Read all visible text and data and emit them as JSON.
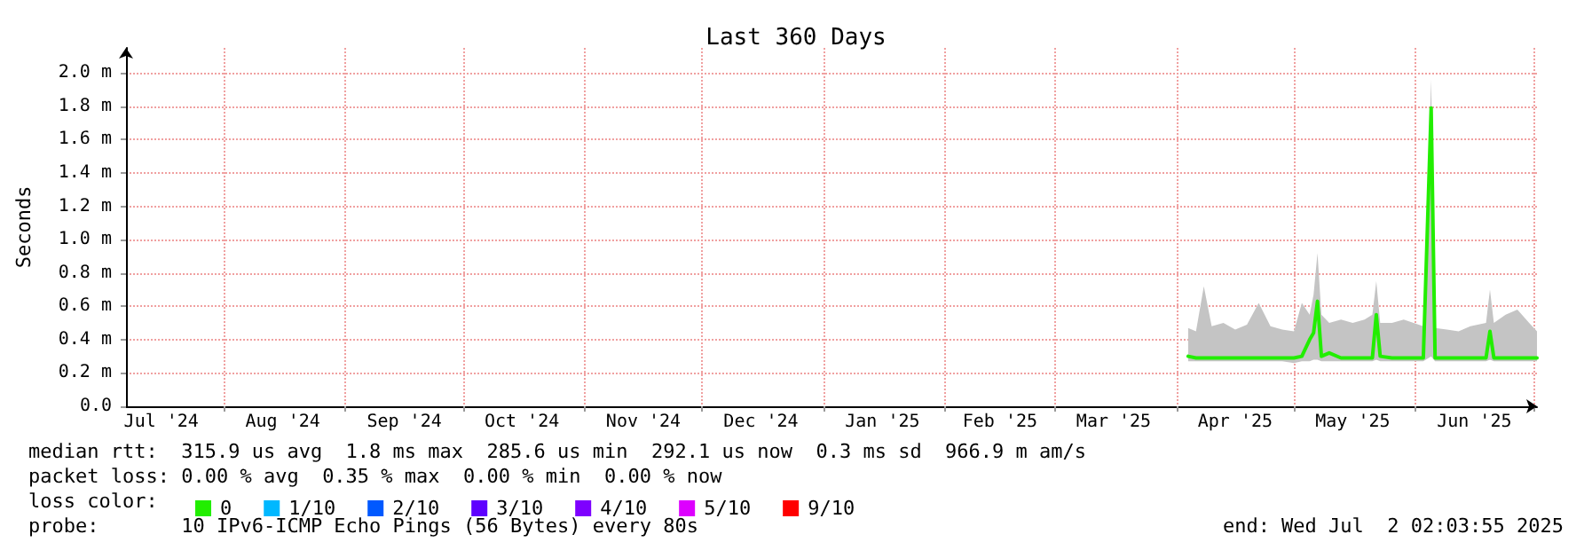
{
  "chart_data": {
    "type": "line",
    "title": "Last 360 Days",
    "ylabel": "Seconds",
    "legend_title": "loss color:",
    "annotations": [
      "median rtt:  315.9 us avg  1.8 ms max  285.6 us min  292.1 us now  0.3 ms sd  966.9 m am/s",
      "packet loss: 0.00 % avg  0.35 % max  0.00 % min  0.00 % now",
      "probe:       10 IPv6-ICMP Echo Pings (56 Bytes) every 80s",
      "end: Wed Jul  2 02:03:55 2025"
    ],
    "x": [
      "2025-04-04",
      "2025-04-06",
      "2025-04-08",
      "2025-04-10",
      "2025-04-13",
      "2025-04-16",
      "2025-04-19",
      "2025-04-22",
      "2025-04-25",
      "2025-04-28",
      "2025-05-01",
      "2025-05-03",
      "2025-05-05",
      "2025-05-06",
      "2025-05-07",
      "2025-05-08",
      "2025-05-10",
      "2025-05-13",
      "2025-05-16",
      "2025-05-19",
      "2025-05-21",
      "2025-05-22",
      "2025-05-23",
      "2025-05-26",
      "2025-05-29",
      "2025-06-03",
      "2025-06-05",
      "2025-06-06",
      "2025-06-09",
      "2025-06-12",
      "2025-06-15",
      "2025-06-19",
      "2025-06-20",
      "2025-06-21",
      "2025-06-24",
      "2025-06-27",
      "2025-06-30",
      "2025-07-02"
    ],
    "series": [
      {
        "name": "0",
        "color": "#22ee00",
        "values": [
          0.3,
          0.29,
          0.29,
          0.29,
          0.29,
          0.29,
          0.29,
          0.29,
          0.29,
          0.29,
          0.29,
          0.3,
          0.4,
          0.44,
          0.63,
          0.3,
          0.32,
          0.29,
          0.29,
          0.29,
          0.29,
          0.55,
          0.3,
          0.29,
          0.29,
          0.29,
          1.79,
          0.29,
          0.29,
          0.29,
          0.29,
          0.29,
          0.45,
          0.29,
          0.29,
          0.29,
          0.29,
          0.29
        ],
        "lower": [
          0.27,
          0.27,
          0.27,
          0.27,
          0.27,
          0.27,
          0.27,
          0.27,
          0.27,
          0.27,
          0.26,
          0.27,
          0.27,
          0.28,
          0.28,
          0.27,
          0.27,
          0.27,
          0.27,
          0.27,
          0.27,
          0.28,
          0.27,
          0.27,
          0.27,
          0.27,
          0.3,
          0.27,
          0.27,
          0.27,
          0.27,
          0.27,
          0.28,
          0.27,
          0.27,
          0.27,
          0.27,
          0.27
        ],
        "upper": [
          0.47,
          0.45,
          0.72,
          0.48,
          0.5,
          0.46,
          0.49,
          0.62,
          0.48,
          0.46,
          0.45,
          0.62,
          0.55,
          0.67,
          0.92,
          0.55,
          0.5,
          0.52,
          0.5,
          0.52,
          0.55,
          0.75,
          0.5,
          0.5,
          0.52,
          0.48,
          1.96,
          0.47,
          0.46,
          0.45,
          0.48,
          0.5,
          0.7,
          0.5,
          0.55,
          0.58,
          0.5,
          0.45
        ]
      },
      {
        "name": "1/10",
        "color": "#00b8ff",
        "values": [
          null,
          null,
          null,
          null,
          null,
          null,
          null,
          null,
          null,
          null,
          null,
          null,
          null,
          null,
          null,
          null,
          null,
          null,
          null,
          null,
          null,
          null,
          null,
          null,
          null,
          null,
          null,
          null,
          null,
          null,
          null,
          null,
          null,
          null,
          null,
          null,
          null,
          null
        ]
      },
      {
        "name": "2/10",
        "color": "#0059ff",
        "values": [
          null,
          null,
          null,
          null,
          null,
          null,
          null,
          null,
          null,
          null,
          null,
          null,
          null,
          null,
          null,
          null,
          null,
          null,
          null,
          null,
          null,
          null,
          null,
          null,
          null,
          null,
          null,
          null,
          null,
          null,
          null,
          null,
          null,
          null,
          null,
          null,
          null,
          null
        ]
      },
      {
        "name": "3/10",
        "color": "#5e00ff",
        "values": [
          null,
          null,
          null,
          null,
          null,
          null,
          null,
          null,
          null,
          null,
          null,
          null,
          null,
          null,
          null,
          null,
          null,
          null,
          null,
          null,
          null,
          null,
          null,
          null,
          null,
          null,
          null,
          null,
          null,
          null,
          null,
          null,
          null,
          null,
          null,
          null,
          null,
          null
        ]
      },
      {
        "name": "4/10",
        "color": "#7e00ff",
        "values": [
          null,
          null,
          null,
          null,
          null,
          null,
          null,
          null,
          null,
          null,
          null,
          null,
          null,
          null,
          null,
          null,
          null,
          null,
          null,
          null,
          null,
          null,
          null,
          null,
          null,
          null,
          null,
          null,
          null,
          null,
          null,
          null,
          null,
          null,
          null,
          null,
          null,
          null
        ]
      },
      {
        "name": "5/10",
        "color": "#dd00ff",
        "values": [
          null,
          null,
          null,
          null,
          null,
          null,
          null,
          null,
          null,
          null,
          null,
          null,
          null,
          null,
          null,
          null,
          null,
          null,
          null,
          null,
          null,
          null,
          null,
          null,
          null,
          null,
          null,
          null,
          null,
          null,
          null,
          null,
          null,
          null,
          null,
          null,
          null,
          null
        ]
      },
      {
        "name": "9/10",
        "color": "#ff0000",
        "values": [
          null,
          null,
          null,
          null,
          null,
          null,
          null,
          null,
          null,
          null,
          null,
          null,
          null,
          null,
          null,
          null,
          null,
          null,
          null,
          null,
          null,
          null,
          null,
          null,
          null,
          null,
          null,
          null,
          null,
          null,
          null,
          null,
          null,
          null,
          null,
          null,
          null,
          null
        ]
      }
    ],
    "xlim": [
      "2024-07-07",
      "2025-07-02"
    ],
    "xticks": [
      {
        "value": "2024-07-16",
        "label": "Jul '24"
      },
      {
        "value": "2024-08-01",
        "label": null
      },
      {
        "value": "2024-08-16",
        "label": "Aug '24"
      },
      {
        "value": "2024-09-01",
        "label": null
      },
      {
        "value": "2024-09-16",
        "label": "Sep '24"
      },
      {
        "value": "2024-10-01",
        "label": null
      },
      {
        "value": "2024-10-16",
        "label": "Oct '24"
      },
      {
        "value": "2024-11-01",
        "label": null
      },
      {
        "value": "2024-11-16",
        "label": "Nov '24"
      },
      {
        "value": "2024-12-01",
        "label": null
      },
      {
        "value": "2024-12-16",
        "label": "Dec '24"
      },
      {
        "value": "2025-01-01",
        "label": null
      },
      {
        "value": "2025-01-16",
        "label": "Jan '25"
      },
      {
        "value": "2025-02-01",
        "label": null
      },
      {
        "value": "2025-02-15",
        "label": "Feb '25"
      },
      {
        "value": "2025-03-01",
        "label": null
      },
      {
        "value": "2025-03-16",
        "label": "Mar '25"
      },
      {
        "value": "2025-04-01",
        "label": null
      },
      {
        "value": "2025-04-16",
        "label": "Apr '25"
      },
      {
        "value": "2025-05-01",
        "label": null
      },
      {
        "value": "2025-05-16",
        "label": "May '25"
      },
      {
        "value": "2025-06-01",
        "label": null
      },
      {
        "value": "2025-06-16",
        "label": "Jun '25"
      },
      {
        "value": "2025-07-01",
        "label": null
      }
    ],
    "ylim": [
      0,
      2.15
    ],
    "yticks": [
      {
        "value": 0,
        "label": "0.0"
      },
      {
        "value": 0.2,
        "label": "0.2 m"
      },
      {
        "value": 0.4,
        "label": "0.4 m"
      },
      {
        "value": 0.6,
        "label": "0.6 m"
      },
      {
        "value": 0.8,
        "label": "0.8 m"
      },
      {
        "value": 1.0,
        "label": "1.0 m"
      },
      {
        "value": 1.2,
        "label": "1.2 m"
      },
      {
        "value": 1.4,
        "label": "1.4 m"
      },
      {
        "value": 1.6,
        "label": "1.6 m"
      },
      {
        "value": 1.8,
        "label": "1.8 m"
      },
      {
        "value": 2.0,
        "label": "2.0 m"
      }
    ],
    "grid": true,
    "legend": "bottom",
    "marker": "none",
    "line_style": "solid"
  }
}
